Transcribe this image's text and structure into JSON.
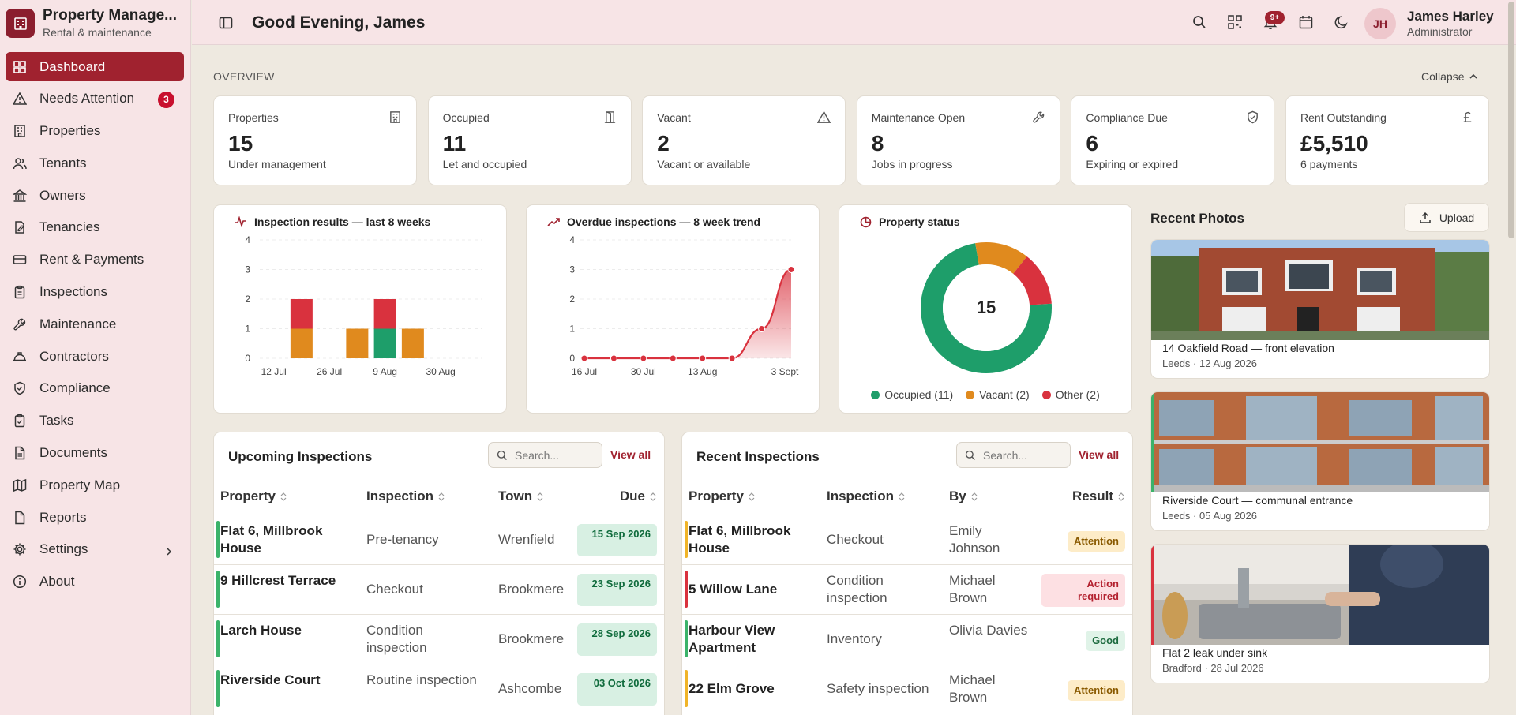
{
  "brand": {
    "title": "Property Manage...",
    "subtitle": "Rental & maintenance"
  },
  "nav": [
    {
      "label": "Dashboard",
      "icon": "dashboard-icon",
      "active": true
    },
    {
      "label": "Needs Attention",
      "icon": "alert-icon",
      "badge": "3"
    },
    {
      "label": "Properties",
      "icon": "building-icon"
    },
    {
      "label": "Tenants",
      "icon": "users-icon"
    },
    {
      "label": "Owners",
      "icon": "bank-icon"
    },
    {
      "label": "Tenancies",
      "icon": "contract-icon"
    },
    {
      "label": "Rent & Payments",
      "icon": "card-icon"
    },
    {
      "label": "Inspections",
      "icon": "clipboard-icon"
    },
    {
      "label": "Maintenance",
      "icon": "wrench-icon"
    },
    {
      "label": "Contractors",
      "icon": "hardhat-icon"
    },
    {
      "label": "Compliance",
      "icon": "shield-icon"
    },
    {
      "label": "Tasks",
      "icon": "tasks-icon"
    },
    {
      "label": "Documents",
      "icon": "file-icon"
    },
    {
      "label": "Property Map",
      "icon": "map-icon"
    },
    {
      "label": "Reports",
      "icon": "report-icon"
    },
    {
      "label": "Settings",
      "icon": "gear-icon",
      "chevron": true
    },
    {
      "label": "About",
      "icon": "info-icon"
    }
  ],
  "header": {
    "greeting": "Good Evening, James",
    "notif_badge": "9+",
    "user_initials": "JH",
    "user_name": "James Harley",
    "user_role": "Administrator"
  },
  "overview": {
    "title": "OVERVIEW",
    "collapse": "Collapse"
  },
  "stats": [
    {
      "label": "Properties",
      "value": "15",
      "sub": "Under management",
      "icon": "building-icon"
    },
    {
      "label": "Occupied",
      "value": "11",
      "sub": "Let and occupied",
      "icon": "door-icon"
    },
    {
      "label": "Vacant",
      "value": "2",
      "sub": "Vacant or available",
      "icon": "warning-icon"
    },
    {
      "label": "Maintenance Open",
      "value": "8",
      "sub": "Jobs in progress",
      "icon": "wrench-icon"
    },
    {
      "label": "Compliance Due",
      "value": "6",
      "sub": "Expiring or expired",
      "icon": "shield-check-icon"
    },
    {
      "label": "Rent Outstanding",
      "value": "£5,510",
      "sub": "6 payments",
      "icon": "pound-icon"
    }
  ],
  "charts": {
    "inspection_title": "Inspection results — last 8 weeks",
    "overdue_title": "Overdue inspections — 8 week trend",
    "status_title": "Property status",
    "donut_center": "15",
    "legend": [
      "Occupied (11)",
      "Vacant (2)",
      "Other (2)"
    ]
  },
  "chart_data": [
    {
      "type": "bar",
      "title": "Inspection results — last 8 weeks",
      "x_tick_labels": [
        "12 Jul",
        "26 Jul",
        "9 Aug",
        "30 Aug"
      ],
      "y_ticks": [
        0,
        1,
        2,
        3,
        4
      ],
      "ylim": [
        0,
        4
      ],
      "categories": [
        "w1",
        "w2",
        "w3",
        "w4",
        "w5",
        "w6",
        "w7",
        "w8"
      ],
      "series": [
        {
          "color": "#e08a1e",
          "values": [
            0,
            1,
            0,
            1,
            0,
            1,
            0,
            0
          ]
        },
        {
          "color": "#1e9e6a",
          "values": [
            0,
            0,
            0,
            0,
            1,
            0,
            0,
            0
          ]
        },
        {
          "color": "#d9323e",
          "values": [
            0,
            1,
            0,
            0,
            1,
            0,
            0,
            0
          ]
        }
      ],
      "grid": true
    },
    {
      "type": "area",
      "title": "Overdue inspections — 8 week trend",
      "x_tick_labels": [
        "16 Jul",
        "30 Jul",
        "13 Aug",
        "3 Sept"
      ],
      "y_ticks": [
        0,
        1,
        2,
        3,
        4
      ],
      "ylim": [
        0,
        4
      ],
      "values": [
        0,
        0,
        0,
        0,
        0,
        0,
        1,
        3
      ],
      "color": "#d9323e",
      "grid": true
    },
    {
      "type": "pie",
      "title": "Property status",
      "center_label": "15",
      "slices": [
        {
          "label": "Occupied",
          "value": 11,
          "color": "#1e9e6a"
        },
        {
          "label": "Vacant",
          "value": 2,
          "color": "#e08a1e"
        },
        {
          "label": "Other",
          "value": 2,
          "color": "#d9323e"
        }
      ],
      "legend": "bottom"
    }
  ],
  "photos": {
    "title": "Recent Photos",
    "upload": "Upload",
    "items": [
      {
        "caption": "14 Oakfield Road — front elevation",
        "meta": "Leeds · 12 Aug 2026",
        "accent": ""
      },
      {
        "caption": "Riverside Court — communal entrance",
        "meta": "Leeds · 05 Aug 2026",
        "accent": "#3bb36a"
      },
      {
        "caption": "Flat 2 leak under sink",
        "meta": "Bradford · 28 Jul 2026",
        "accent": "#d9323e"
      }
    ]
  },
  "upcoming": {
    "title": "Upcoming Inspections",
    "search": "Search...",
    "view_all": "View all",
    "headers": [
      "Property",
      "Inspection",
      "Town",
      "Due"
    ],
    "rows": [
      {
        "property": "Flat 6, Millbrook House",
        "inspection": "Pre-tenancy",
        "town": "Wrenfield",
        "due": "15 Sep 2026"
      },
      {
        "property": "9 Hillcrest Terrace",
        "inspection": "Checkout",
        "town": "Brookmere",
        "due": "23 Sep 2026"
      },
      {
        "property": "Larch House",
        "inspection": "Condition inspection",
        "town": "Brookmere",
        "due": "28 Sep 2026"
      },
      {
        "property": "Riverside Court",
        "inspection": "Routine inspection",
        "town": "Ashcombe",
        "due": "03 Oct 2026"
      }
    ]
  },
  "recent": {
    "title": "Recent Inspections",
    "search": "Search...",
    "view_all": "View all",
    "headers": [
      "Property",
      "Inspection",
      "By",
      "Result"
    ],
    "rows": [
      {
        "property": "Flat 6, Millbrook House",
        "inspection": "Checkout",
        "by": "Emily Johnson",
        "result": "Attention",
        "accent": "#f0b429"
      },
      {
        "property": "5 Willow Lane",
        "inspection": "Condition inspection",
        "by": "Michael Brown",
        "result": "Action required",
        "accent": "#d9323e"
      },
      {
        "property": "Harbour View Apartment",
        "inspection": "Inventory",
        "by": "Olivia Davies",
        "result": "Good",
        "accent": "#3bb36a"
      },
      {
        "property": "22 Elm Grove",
        "inspection": "Safety inspection",
        "by": "Michael Brown",
        "result": "Attention",
        "accent": "#f0b429"
      }
    ]
  }
}
